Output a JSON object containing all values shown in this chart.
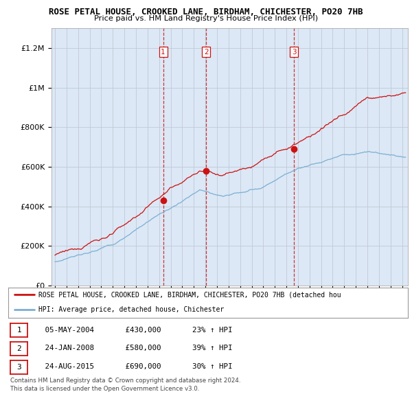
{
  "title": "ROSE PETAL HOUSE, CROOKED LANE, BIRDHAM, CHICHESTER, PO20 7HB",
  "subtitle": "Price paid vs. HM Land Registry's House Price Index (HPI)",
  "ylabel_ticks": [
    "£0",
    "£200K",
    "£400K",
    "£600K",
    "£800K",
    "£1M",
    "£1.2M"
  ],
  "ytick_vals": [
    0,
    200000,
    400000,
    600000,
    800000,
    1000000,
    1200000
  ],
  "ylim": [
    0,
    1300000
  ],
  "xlim_start": 1994.7,
  "xlim_end": 2025.5,
  "hpi_color": "#7bafd4",
  "price_color": "#cc1111",
  "vline_color": "#cc1111",
  "bg_color": "#dce8f5",
  "plot_bg": "#ffffff",
  "grid_color": "#c0c8d8",
  "sale_dates": [
    2004.35,
    2008.07,
    2015.65
  ],
  "sale_prices": [
    430000,
    580000,
    690000
  ],
  "sale_labels": [
    "1",
    "2",
    "3"
  ],
  "legend_label_red": "ROSE PETAL HOUSE, CROOKED LANE, BIRDHAM, CHICHESTER, PO20 7HB (detached hou",
  "legend_label_blue": "HPI: Average price, detached house, Chichester",
  "table_rows": [
    {
      "num": "1",
      "date": "05-MAY-2004",
      "price": "£430,000",
      "pct": "23% ↑ HPI"
    },
    {
      "num": "2",
      "date": "24-JAN-2008",
      "price": "£580,000",
      "pct": "39% ↑ HPI"
    },
    {
      "num": "3",
      "date": "24-AUG-2015",
      "price": "£690,000",
      "pct": "30% ↑ HPI"
    }
  ],
  "footnote1": "Contains HM Land Registry data © Crown copyright and database right 2024.",
  "footnote2": "This data is licensed under the Open Government Licence v3.0."
}
